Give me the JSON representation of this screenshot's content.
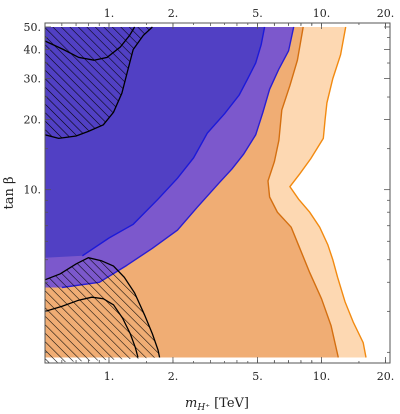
{
  "chart_data": {
    "type": "area",
    "title": "",
    "xlabel": "m_{H⁺} [TeV]",
    "xlabel_parts": {
      "base": "m",
      "subscript": "H⁺",
      "unit": " [TeV]"
    },
    "ylabel": "tan β",
    "xscale": "log",
    "yscale": "log",
    "xlim": [
      0.5,
      21
    ],
    "ylim": [
      1.8,
      52
    ],
    "grid": false,
    "legend": "none",
    "xticks": {
      "values": [
        1,
        2,
        5,
        10,
        20
      ],
      "labels": [
        "1.",
        "2.",
        "5.",
        "10.",
        "20."
      ]
    },
    "yticks": {
      "values": [
        10,
        20,
        30,
        40,
        50
      ],
      "labels": [
        "10.",
        "20.",
        "30.",
        "40.",
        "50."
      ]
    },
    "top_ticks": {
      "values": [
        1,
        2,
        5,
        10,
        20
      ],
      "labels": [
        "1.",
        "2.",
        "5.",
        "10.",
        "20."
      ]
    },
    "regions": [
      {
        "id": "orange-light",
        "fill": "#fdd8b2",
        "stroke": "#f28a10",
        "boundary": [
          [
            0.5,
            50
          ],
          [
            13.0,
            50
          ],
          [
            12.3,
            38
          ],
          [
            11.3,
            30
          ],
          [
            10.6,
            23.6
          ],
          [
            10.4,
            20
          ],
          [
            10.2,
            16.6
          ],
          [
            8.9,
            13.6
          ],
          [
            7.9,
            11.7
          ],
          [
            7.1,
            10.3
          ],
          [
            7.8,
            9.1
          ],
          [
            8.8,
            8.0
          ],
          [
            9.8,
            6.9
          ],
          [
            10.7,
            5.8
          ],
          [
            11.3,
            5.0
          ],
          [
            11.9,
            4.2
          ],
          [
            12.9,
            3.3
          ],
          [
            14.1,
            2.7
          ],
          [
            15.7,
            2.2
          ],
          [
            16.2,
            1.9
          ],
          [
            0.5,
            1.9
          ]
        ]
      },
      {
        "id": "orange-mid",
        "fill": "#f0ad74",
        "stroke": "#d46f10",
        "boundary": [
          [
            0.5,
            50
          ],
          [
            8.2,
            50
          ],
          [
            7.7,
            36
          ],
          [
            7.1,
            28
          ],
          [
            6.5,
            22
          ],
          [
            6.3,
            16.3
          ],
          [
            6.0,
            13.2
          ],
          [
            5.6,
            10.9
          ],
          [
            5.7,
            9.3
          ],
          [
            6.2,
            8.0
          ],
          [
            7.2,
            6.9
          ],
          [
            7.9,
            5.6
          ],
          [
            8.8,
            4.4
          ],
          [
            10.0,
            3.4
          ],
          [
            11.1,
            2.6
          ],
          [
            11.7,
            2.1
          ],
          [
            12.0,
            1.9
          ],
          [
            0.5,
            1.9
          ]
        ]
      },
      {
        "id": "purple-light",
        "fill": "#7c58cc",
        "stroke": "#2a1fd2",
        "boundary": [
          [
            0.5,
            50
          ],
          [
            7.4,
            50
          ],
          [
            7.0,
            39.5
          ],
          [
            6.3,
            33
          ],
          [
            5.7,
            27
          ],
          [
            5.3,
            21.5
          ],
          [
            4.9,
            17.2
          ],
          [
            4.3,
            14.2
          ],
          [
            3.8,
            12.3
          ],
          [
            3.3,
            10.7
          ],
          [
            2.6,
            8.4
          ],
          [
            2.1,
            6.7
          ],
          [
            1.6,
            5.6
          ],
          [
            1.2,
            4.7
          ],
          [
            0.9,
            4.0
          ],
          [
            0.6,
            3.8
          ],
          [
            0.5,
            3.8
          ]
        ]
      },
      {
        "id": "purple-dark",
        "fill": "#5140c4",
        "stroke": "#1c1ad8",
        "boundary": [
          [
            0.5,
            50
          ],
          [
            5.4,
            50
          ],
          [
            5.2,
            42
          ],
          [
            4.9,
            35
          ],
          [
            4.5,
            30
          ],
          [
            4.1,
            25.5
          ],
          [
            3.5,
            21.2
          ],
          [
            2.9,
            17.5
          ],
          [
            2.5,
            13.7
          ],
          [
            2.1,
            11.2
          ],
          [
            1.7,
            9.1
          ],
          [
            1.3,
            7.1
          ],
          [
            1.0,
            6.2
          ],
          [
            0.75,
            5.2
          ],
          [
            0.5,
            5.1
          ]
        ]
      },
      {
        "id": "hatched-upper",
        "fill": "hatch",
        "stroke": "#000000",
        "boundary": [
          [
            0.5,
            50
          ],
          [
            1.25,
            50
          ],
          [
            1.1,
            44
          ],
          [
            0.95,
            41
          ],
          [
            0.84,
            40.5
          ],
          [
            0.72,
            43
          ],
          [
            0.59,
            47
          ],
          [
            0.5,
            48.5
          ],
          [
            0.5,
            50
          ],
          [
            0.5,
            50
          ]
        ],
        "outline": [
          [
            0.5,
            43.5
          ],
          [
            0.61,
            40
          ],
          [
            0.72,
            37
          ],
          [
            0.85,
            36
          ],
          [
            0.98,
            37
          ],
          [
            1.13,
            41
          ],
          [
            1.25,
            46
          ],
          [
            1.32,
            50
          ]
        ],
        "hatched_area": [
          [
            0.5,
            43.5
          ],
          [
            0.61,
            40
          ],
          [
            0.72,
            37
          ],
          [
            0.85,
            36
          ],
          [
            0.98,
            37
          ],
          [
            1.13,
            41
          ],
          [
            1.25,
            46
          ],
          [
            1.32,
            50
          ],
          [
            0.5,
            50
          ]
        ],
        "lower_boundary": [
          [
            0.5,
            17.2
          ],
          [
            0.58,
            16.6
          ],
          [
            0.7,
            17.0
          ],
          [
            0.8,
            17.8
          ],
          [
            0.94,
            19.0
          ],
          [
            1.05,
            21.5
          ],
          [
            1.15,
            26
          ],
          [
            1.22,
            32
          ],
          [
            1.3,
            40
          ],
          [
            1.45,
            46
          ],
          [
            1.6,
            50
          ]
        ]
      },
      {
        "id": "hatched-lower",
        "fill": "hatch",
        "stroke": "#000000",
        "upper_boundary": [
          [
            0.5,
            4.1
          ],
          [
            0.59,
            4.35
          ],
          [
            0.7,
            4.8
          ],
          [
            0.8,
            5.1
          ],
          [
            0.92,
            4.95
          ],
          [
            1.05,
            4.7
          ],
          [
            1.18,
            4.2
          ],
          [
            1.32,
            3.6
          ],
          [
            1.47,
            2.9
          ],
          [
            1.6,
            2.4
          ],
          [
            1.7,
            2.05
          ],
          [
            1.73,
            1.9
          ]
        ],
        "inner_boundary": [
          [
            0.5,
            3.0
          ],
          [
            0.6,
            3.15
          ],
          [
            0.72,
            3.35
          ],
          [
            0.83,
            3.45
          ],
          [
            0.94,
            3.4
          ],
          [
            1.05,
            3.2
          ],
          [
            1.16,
            2.8
          ],
          [
            1.26,
            2.4
          ],
          [
            1.33,
            2.1
          ],
          [
            1.37,
            1.9
          ]
        ]
      }
    ]
  }
}
